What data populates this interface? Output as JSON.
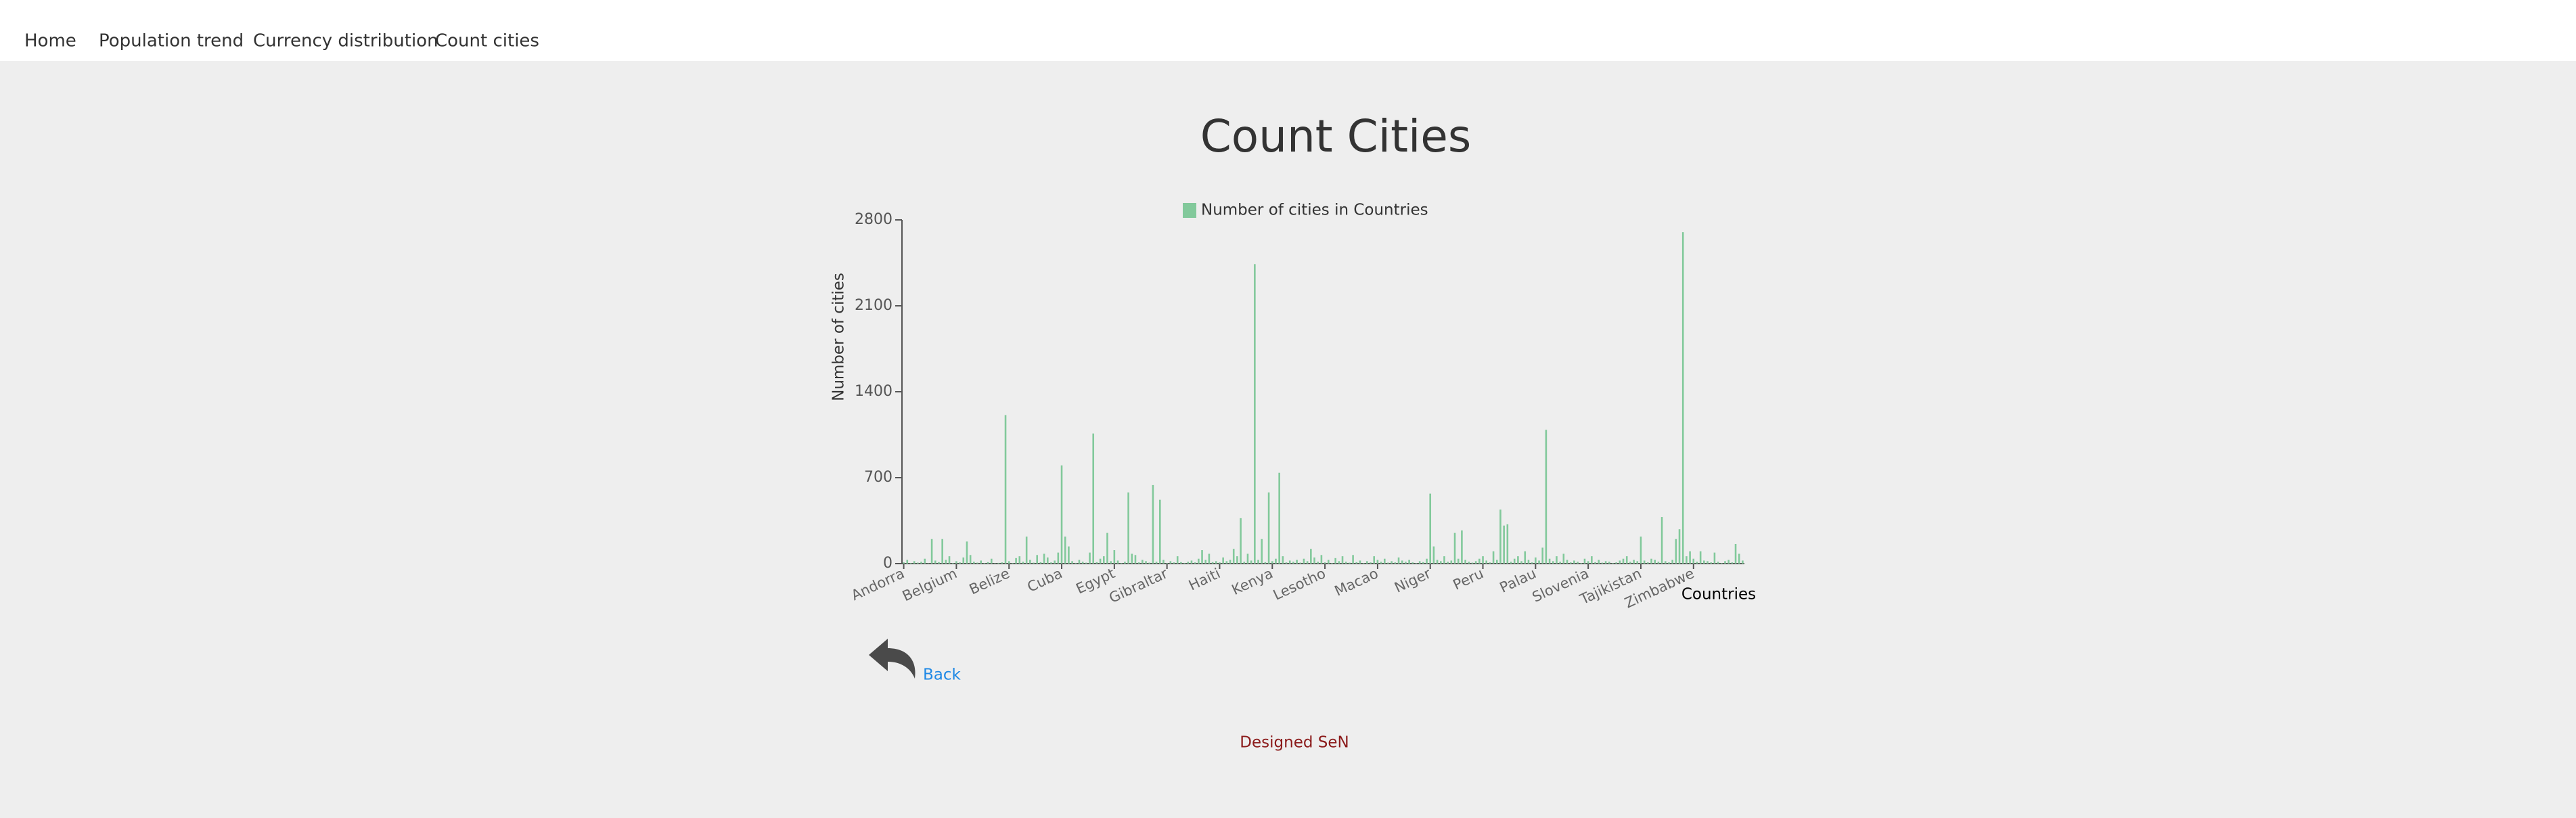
{
  "nav": [
    "Home",
    "Population trend",
    "Currency distribution",
    "Count cities"
  ],
  "chart_data": {
    "type": "bar",
    "title": "Count Cities",
    "x_label": "Countries",
    "y_label": "Number of cities",
    "categories": [
      "Andorra",
      null,
      null,
      null,
      null,
      null,
      null,
      null,
      null,
      null,
      null,
      null,
      null,
      null,
      null,
      "Belgium",
      null,
      null,
      null,
      null,
      null,
      null,
      null,
      null,
      null,
      null,
      null,
      null,
      null,
      null,
      "Belize",
      null,
      null,
      null,
      null,
      null,
      null,
      null,
      null,
      null,
      null,
      null,
      null,
      null,
      null,
      "Cuba",
      null,
      null,
      null,
      null,
      null,
      null,
      null,
      null,
      null,
      null,
      null,
      null,
      null,
      null,
      "Egypt",
      null,
      null,
      null,
      null,
      null,
      null,
      null,
      null,
      null,
      null,
      null,
      null,
      null,
      null,
      "Gibraltar",
      null,
      null,
      null,
      null,
      null,
      null,
      null,
      null,
      null,
      null,
      null,
      null,
      null,
      null,
      "Haiti",
      null,
      null,
      null,
      null,
      null,
      null,
      null,
      null,
      null,
      null,
      null,
      null,
      null,
      null,
      "Kenya",
      null,
      null,
      null,
      null,
      null,
      null,
      null,
      null,
      null,
      null,
      null,
      null,
      null,
      null,
      "Lesotho",
      null,
      null,
      null,
      null,
      null,
      null,
      null,
      null,
      null,
      null,
      null,
      null,
      null,
      null,
      "Macao",
      null,
      null,
      null,
      null,
      null,
      null,
      null,
      null,
      null,
      null,
      null,
      null,
      null,
      null,
      "Niger",
      null,
      null,
      null,
      null,
      null,
      null,
      null,
      null,
      null,
      null,
      null,
      null,
      null,
      null,
      "Peru",
      null,
      null,
      null,
      null,
      null,
      null,
      null,
      null,
      null,
      null,
      null,
      null,
      null,
      null,
      "Palau",
      null,
      null,
      null,
      null,
      null,
      null,
      null,
      null,
      null,
      null,
      null,
      null,
      null,
      null,
      "Slovenia",
      null,
      null,
      null,
      null,
      null,
      null,
      null,
      null,
      null,
      null,
      null,
      null,
      null,
      null,
      "Tajikistan",
      null,
      null,
      null,
      null,
      null,
      null,
      null,
      null,
      null,
      null,
      null,
      null,
      null,
      null,
      "Zimbabwe",
      null,
      null,
      null,
      null,
      null,
      null,
      null,
      null,
      null,
      null,
      null,
      null,
      null,
      null
    ],
    "series": [
      {
        "name": "Number of cities in Countries",
        "color": "#82c99b",
        "values": [
          10,
          30,
          5,
          20,
          8,
          15,
          40,
          3,
          200,
          25,
          12,
          200,
          30,
          60,
          5,
          20,
          10,
          50,
          180,
          70,
          15,
          8,
          25,
          5,
          12,
          40,
          3,
          6,
          10,
          1210,
          20,
          5,
          45,
          60,
          15,
          220,
          30,
          8,
          70,
          12,
          80,
          50,
          10,
          25,
          90,
          800,
          220,
          140,
          20,
          6,
          30,
          15,
          8,
          90,
          1060,
          12,
          40,
          60,
          250,
          20,
          110,
          25,
          5,
          15,
          580,
          80,
          70,
          10,
          30,
          20,
          8,
          640,
          15,
          520,
          30,
          5,
          20,
          10,
          60,
          12,
          6,
          15,
          25,
          10,
          40,
          110,
          30,
          80,
          12,
          20,
          10,
          50,
          20,
          30,
          120,
          60,
          370,
          15,
          80,
          25,
          2440,
          30,
          200,
          12,
          580,
          20,
          40,
          740,
          60,
          10,
          25,
          15,
          30,
          8,
          40,
          20,
          120,
          50,
          15,
          70,
          10,
          30,
          5,
          45,
          20,
          60,
          15,
          8,
          70,
          12,
          25,
          5,
          20,
          10,
          60,
          30,
          15,
          40,
          8,
          20,
          10,
          50,
          25,
          15,
          30,
          10,
          5,
          20,
          12,
          40,
          570,
          140,
          30,
          20,
          60,
          15,
          25,
          250,
          40,
          270,
          30,
          15,
          8,
          20,
          40,
          60,
          25,
          10,
          100,
          30,
          440,
          310,
          320,
          15,
          40,
          60,
          20,
          100,
          30,
          10,
          50,
          25,
          130,
          1090,
          40,
          20,
          60,
          15,
          80,
          30,
          10,
          25,
          15,
          5,
          40,
          20,
          60,
          12,
          30,
          8,
          20,
          15,
          5,
          10,
          25,
          40,
          60,
          15,
          30,
          20,
          220,
          25,
          10,
          40,
          30,
          15,
          380,
          20,
          10,
          30,
          200,
          280,
          2700,
          60,
          100,
          40,
          15,
          100,
          25,
          20,
          10,
          90,
          15,
          5,
          20,
          30,
          10,
          160,
          80,
          25
        ]
      }
    ],
    "ylim": [
      0,
      2800
    ],
    "yticks": [
      0,
      700,
      1400,
      2100,
      2800
    ]
  },
  "back": "Back",
  "footer": "Designed SeN"
}
